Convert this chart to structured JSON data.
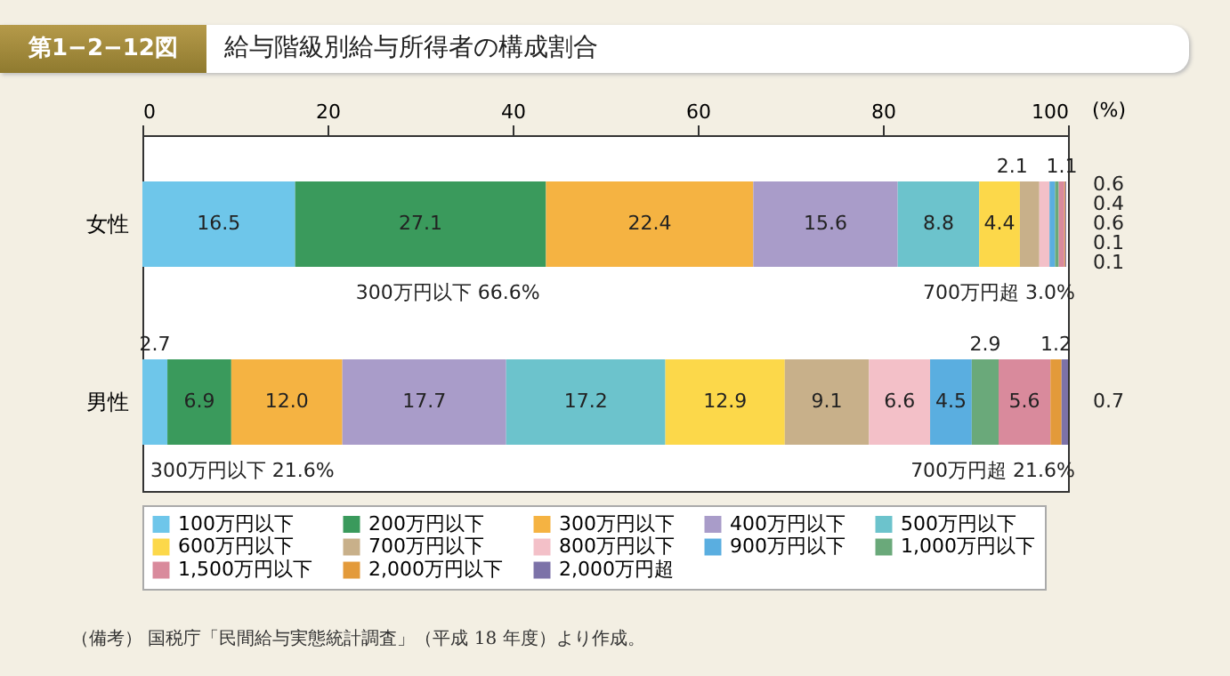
{
  "chart_data": {
    "type": "bar",
    "title": "給与階級別給与所得者の構成割合",
    "subtitle": "第1−2−12図",
    "xlabel": "(%)",
    "orientation": "horizontal",
    "stacked": true,
    "categories": [
      "女性",
      "男性"
    ],
    "xlim": [
      0,
      100
    ],
    "xticks": [
      0,
      20,
      40,
      60,
      80,
      100
    ],
    "grid": false,
    "legend": "bottom",
    "series": [
      {
        "name": "100万円以下",
        "color": "#6ec6ea",
        "values": [
          16.5,
          2.7
        ],
        "value_labels": [
          "16.5",
          "2.7"
        ]
      },
      {
        "name": "200万円以下",
        "color": "#3a9a5c",
        "values": [
          27.1,
          6.9
        ],
        "value_labels": [
          "27.1",
          "6.9"
        ]
      },
      {
        "name": "300万円以下",
        "color": "#f5b342",
        "values": [
          22.4,
          12.0
        ],
        "value_labels": [
          "22.4",
          "12.0"
        ]
      },
      {
        "name": "400万円以下",
        "color": "#a99cc9",
        "values": [
          15.6,
          17.7
        ],
        "value_labels": [
          "15.6",
          "17.7"
        ]
      },
      {
        "name": "500万円以下",
        "color": "#6cc3cc",
        "values": [
          8.8,
          17.2
        ],
        "value_labels": [
          "8.8",
          "17.2"
        ]
      },
      {
        "name": "600万円以下",
        "color": "#fcd84a",
        "values": [
          4.4,
          12.9
        ],
        "value_labels": [
          "4.4",
          "12.9"
        ]
      },
      {
        "name": "700万円以下",
        "color": "#c8b08a",
        "values": [
          2.1,
          9.1
        ],
        "value_labels": [
          "2.1",
          "9.1"
        ]
      },
      {
        "name": "800万円以下",
        "color": "#f3c0c8",
        "values": [
          1.1,
          6.6
        ],
        "value_labels": [
          "1.1",
          "6.6"
        ]
      },
      {
        "name": "900万円以下",
        "color": "#5aaee0",
        "values": [
          0.6,
          4.5
        ],
        "value_labels": [
          "0.6",
          "4.5"
        ]
      },
      {
        "name": "1,000万円以下",
        "color": "#6aa97a",
        "values": [
          0.4,
          2.9
        ],
        "value_labels": [
          "0.4",
          "2.9"
        ]
      },
      {
        "name": "1,500万円以下",
        "color": "#d98a9c",
        "values": [
          0.6,
          5.6
        ],
        "value_labels": [
          "0.6",
          "5.6"
        ]
      },
      {
        "name": "2,000万円以下",
        "color": "#e39a3a",
        "values": [
          0.1,
          1.2
        ],
        "value_labels": [
          "0.1",
          "1.2"
        ]
      },
      {
        "name": "2,000万円超",
        "color": "#7c72a8",
        "values": [
          0.1,
          0.7
        ],
        "value_labels": [
          "0.1",
          "0.7"
        ]
      }
    ],
    "annotations": [
      "300万円以下 66.6%",
      "700万円超 3.0%",
      "300万円以下 21.6%",
      "700万円超 21.6%",
      "（備考） 国税庁「民間給与実態統計調査」（平成 18 年度）より作成。"
    ]
  }
}
